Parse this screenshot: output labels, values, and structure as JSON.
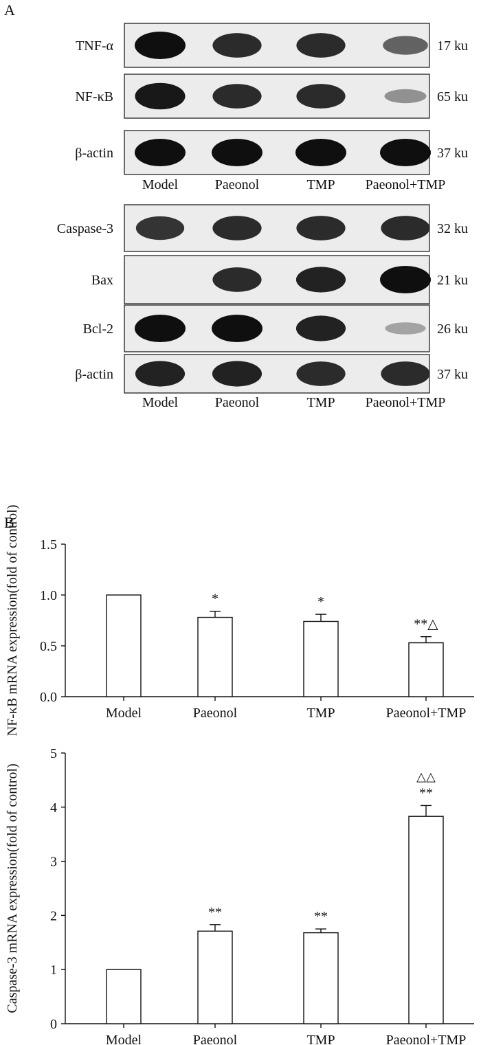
{
  "panel_a": {
    "letter": "A",
    "blots": [
      {
        "groups": [
          "Model",
          "Paeonol",
          "TMP",
          "Paeonol+TMP"
        ],
        "rows": [
          {
            "label": "TNF-α",
            "size": "17 ku",
            "intensity": [
              1.0,
              0.85,
              0.85,
              0.55
            ]
          },
          {
            "label": "NF-κB",
            "size": "65 ku",
            "intensity": [
              0.95,
              0.85,
              0.85,
              0.3
            ]
          },
          {
            "label": "β-actin",
            "size": "37 ku",
            "intensity": [
              1.0,
              1.0,
              1.0,
              1.0
            ]
          }
        ]
      },
      {
        "groups": [
          "Model",
          "Paeonol",
          "TMP",
          "Paeonol+TMP"
        ],
        "rows": [
          {
            "label": "Caspase-3",
            "size": "32 ku",
            "intensity": [
              0.8,
              0.85,
              0.85,
              0.85
            ]
          },
          {
            "label": "Bax",
            "size": "21 ku",
            "intensity": [
              0.0,
              0.85,
              0.9,
              1.0
            ]
          },
          {
            "label": "Bcl-2",
            "size": "26 ku",
            "intensity": [
              1.0,
              1.0,
              0.9,
              0.2
            ]
          },
          {
            "label": "β-actin",
            "size": "37 ku",
            "intensity": [
              0.9,
              0.9,
              0.85,
              0.85
            ]
          }
        ]
      }
    ]
  },
  "panel_b": {
    "letter": "B"
  },
  "chart_data": [
    {
      "type": "bar",
      "categories": [
        "Model",
        "Paeonol",
        "TMP",
        "Paeonol+TMP"
      ],
      "values": [
        1.0,
        0.78,
        0.74,
        0.53
      ],
      "errors": [
        0.0,
        0.06,
        0.07,
        0.06
      ],
      "annotations": [
        "",
        "*",
        "*",
        "**△"
      ],
      "ylabel": "NF-κB mRNA expression(fold of control)",
      "ylim": [
        0,
        1.5
      ],
      "yticks": [
        "0.0",
        "0.5",
        "1.0",
        "1.5"
      ]
    },
    {
      "type": "bar",
      "categories": [
        "Model",
        "Paeonol",
        "TMP",
        "Paeonol+TMP"
      ],
      "values": [
        1.0,
        1.71,
        1.68,
        3.83
      ],
      "errors": [
        0.0,
        0.12,
        0.07,
        0.2
      ],
      "annotations": [
        "",
        "**",
        "**",
        "**"
      ],
      "top_annotations": [
        "",
        "",
        "",
        "△△"
      ],
      "ylabel": "Caspase-3 mRNA expression(fold of control)",
      "ylim": [
        0,
        5
      ],
      "yticks": [
        "0",
        "1",
        "2",
        "3",
        "4",
        "5"
      ]
    }
  ]
}
